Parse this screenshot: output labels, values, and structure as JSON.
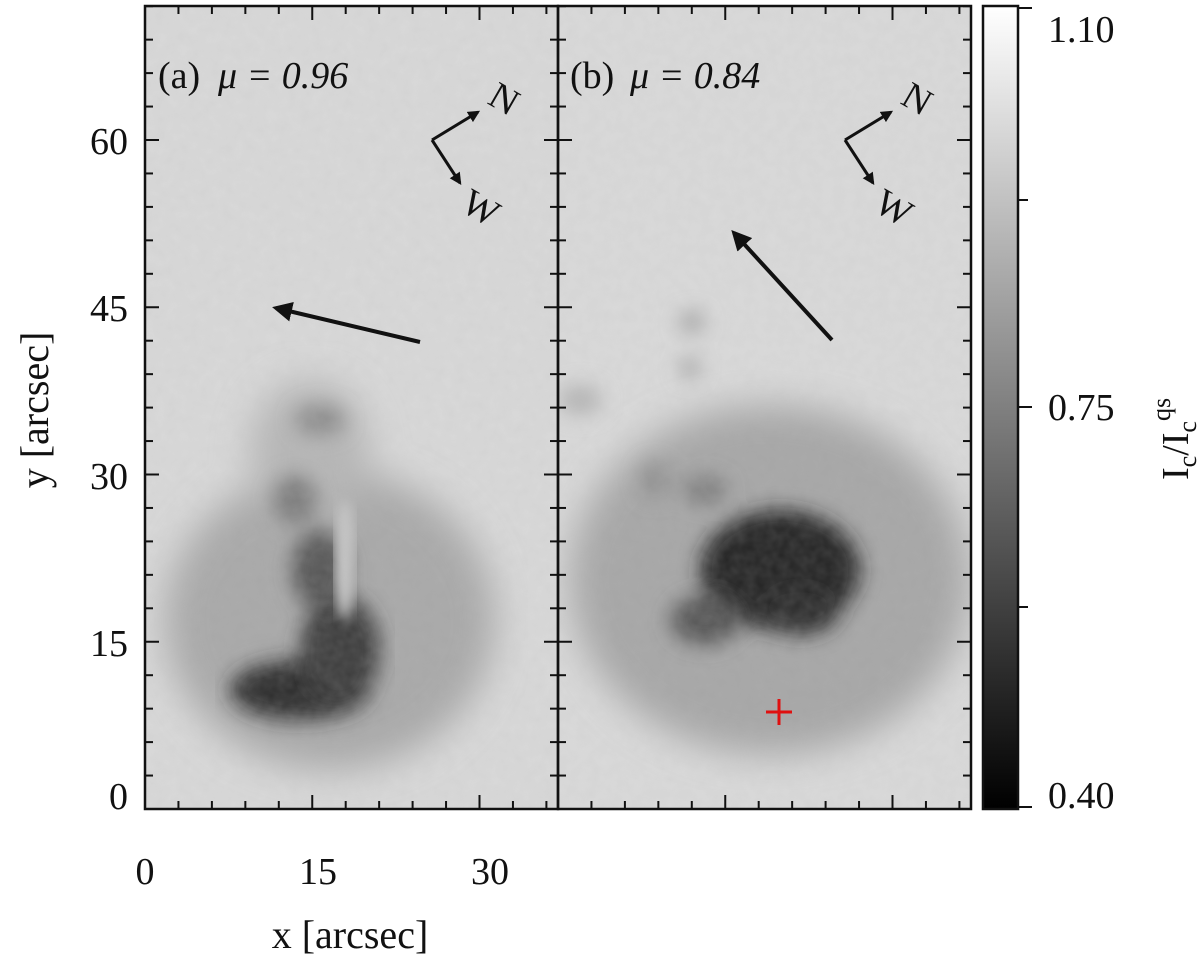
{
  "panels": [
    {
      "label": "(a)",
      "mu_text": "μ = 0.96",
      "compass": {
        "north": "N",
        "west": "W"
      }
    },
    {
      "label": "(b)",
      "mu_text": "μ = 0.84",
      "compass": {
        "north": "N",
        "west": "W"
      }
    }
  ],
  "axes": {
    "x_label": "x [arcsec]",
    "y_label": "y [arcsec]",
    "x_ticks": [
      "0",
      "15",
      "30"
    ],
    "y_ticks": [
      "0",
      "15",
      "30",
      "45",
      "60"
    ]
  },
  "colorbar": {
    "ticks": [
      "1.10",
      "0.75",
      "0.40"
    ],
    "label_main": "I",
    "label_sub1": "c",
    "label_slash": "/I",
    "label_sub2": "c",
    "label_sup": "qs"
  },
  "colors": {
    "marker": "#e01010",
    "frame": "#111111"
  }
}
